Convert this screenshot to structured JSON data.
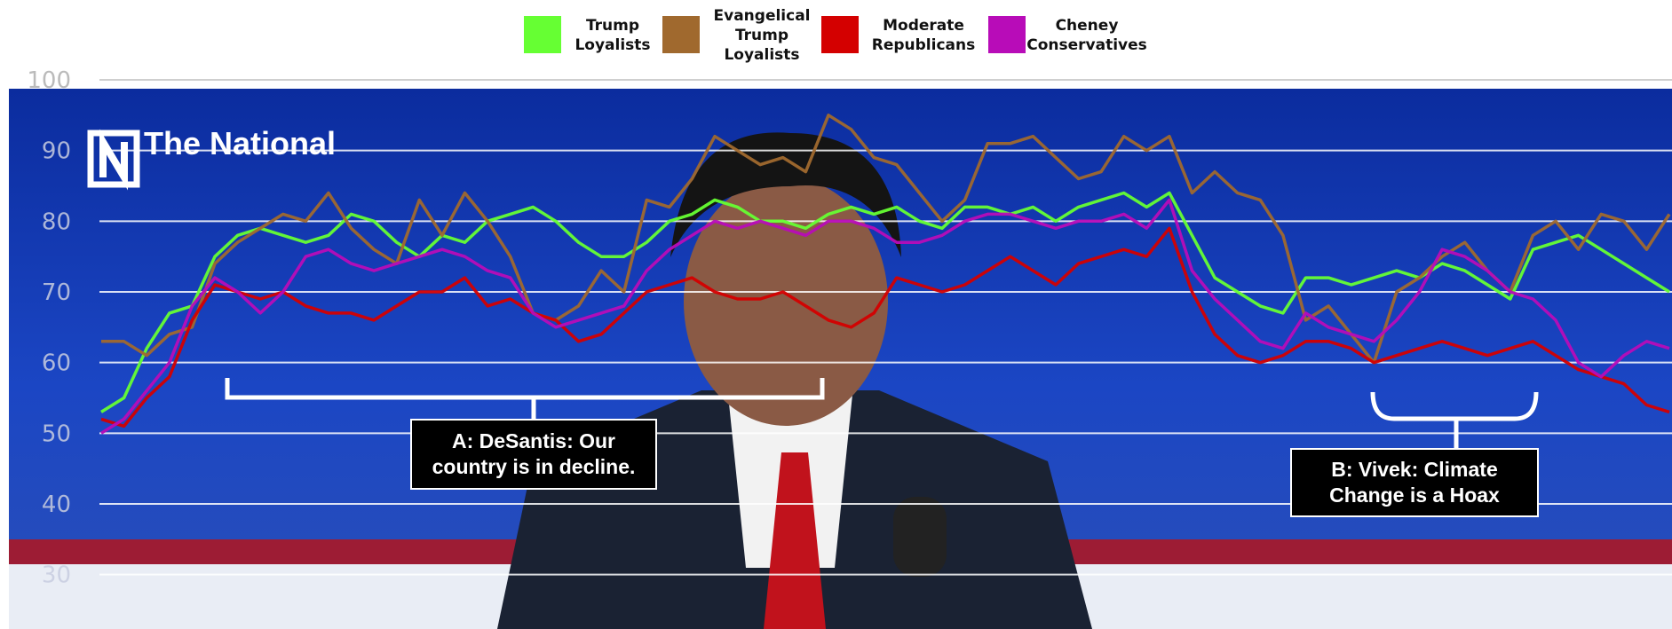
{
  "chart_data": {
    "type": "line",
    "watermark": "The National",
    "annotations": [
      "A: DeSantis: Our country is in decline.",
      "B: Vivek: Climate Change is a Hoax"
    ],
    "ylim": [
      22.3,
      100
    ],
    "yticks": [
      30,
      40,
      50,
      60,
      70,
      80,
      90,
      100
    ],
    "grid": true,
    "series": [
      {
        "name": "Trump Loyalists",
        "color": "#66ff33",
        "values": [
          53,
          55,
          62,
          67,
          68,
          75,
          78,
          79,
          78,
          77,
          78,
          81,
          80,
          77,
          75,
          78,
          77,
          80,
          81,
          82,
          80,
          77,
          75,
          75,
          77,
          80,
          81,
          83,
          82,
          80,
          80,
          79,
          81,
          82,
          81,
          82,
          80,
          79,
          82,
          82,
          81,
          82,
          80,
          82,
          83,
          84,
          82,
          84,
          78,
          72,
          70,
          68,
          67,
          72,
          72,
          71,
          72,
          73,
          72,
          74,
          73,
          71,
          69,
          76,
          77,
          78,
          76,
          74,
          72,
          70
        ]
      },
      {
        "name": "Evangelical Trump Loyalists",
        "color": "#a0692e",
        "values": [
          63,
          63,
          61,
          64,
          65,
          74,
          77,
          79,
          81,
          80,
          84,
          79,
          76,
          74,
          83,
          78,
          84,
          80,
          75,
          67,
          66,
          68,
          73,
          70,
          83,
          82,
          86,
          92,
          90,
          88,
          89,
          87,
          95,
          93,
          89,
          88,
          84,
          80,
          83,
          91,
          91,
          92,
          89,
          86,
          87,
          92,
          90,
          92,
          84,
          87,
          84,
          83,
          78,
          66,
          68,
          64,
          60,
          70,
          72,
          75,
          77,
          73,
          70,
          78,
          80,
          76,
          81,
          80,
          76,
          81
        ]
      },
      {
        "name": "Moderate Republicans",
        "color": "#d40000",
        "values": [
          52,
          51,
          55,
          58,
          66,
          71,
          70,
          69,
          70,
          68,
          67,
          67,
          66,
          68,
          70,
          70,
          72,
          68,
          69,
          67,
          66,
          63,
          64,
          67,
          70,
          71,
          72,
          70,
          69,
          69,
          70,
          68,
          66,
          65,
          67,
          72,
          71,
          70,
          71,
          73,
          75,
          73,
          71,
          74,
          75,
          76,
          75,
          79,
          70,
          64,
          61,
          60,
          61,
          63,
          63,
          62,
          60,
          61,
          62,
          63,
          62,
          61,
          62,
          63,
          61,
          59,
          58,
          57,
          54,
          53
        ]
      },
      {
        "name": "Cheney Conservatives",
        "color": "#b80cb8",
        "values": [
          50,
          52,
          56,
          60,
          68,
          72,
          70,
          67,
          70,
          75,
          76,
          74,
          73,
          74,
          75,
          76,
          75,
          73,
          72,
          67,
          65,
          66,
          67,
          68,
          73,
          76,
          78,
          80,
          79,
          80,
          79,
          78,
          80,
          80,
          79,
          77,
          77,
          78,
          80,
          81,
          81,
          80,
          79,
          80,
          80,
          81,
          79,
          83,
          73,
          69,
          66,
          63,
          62,
          67,
          65,
          64,
          63,
          66,
          70,
          76,
          75,
          73,
          70,
          69,
          66,
          60,
          58,
          61,
          63,
          62
        ]
      }
    ]
  }
}
